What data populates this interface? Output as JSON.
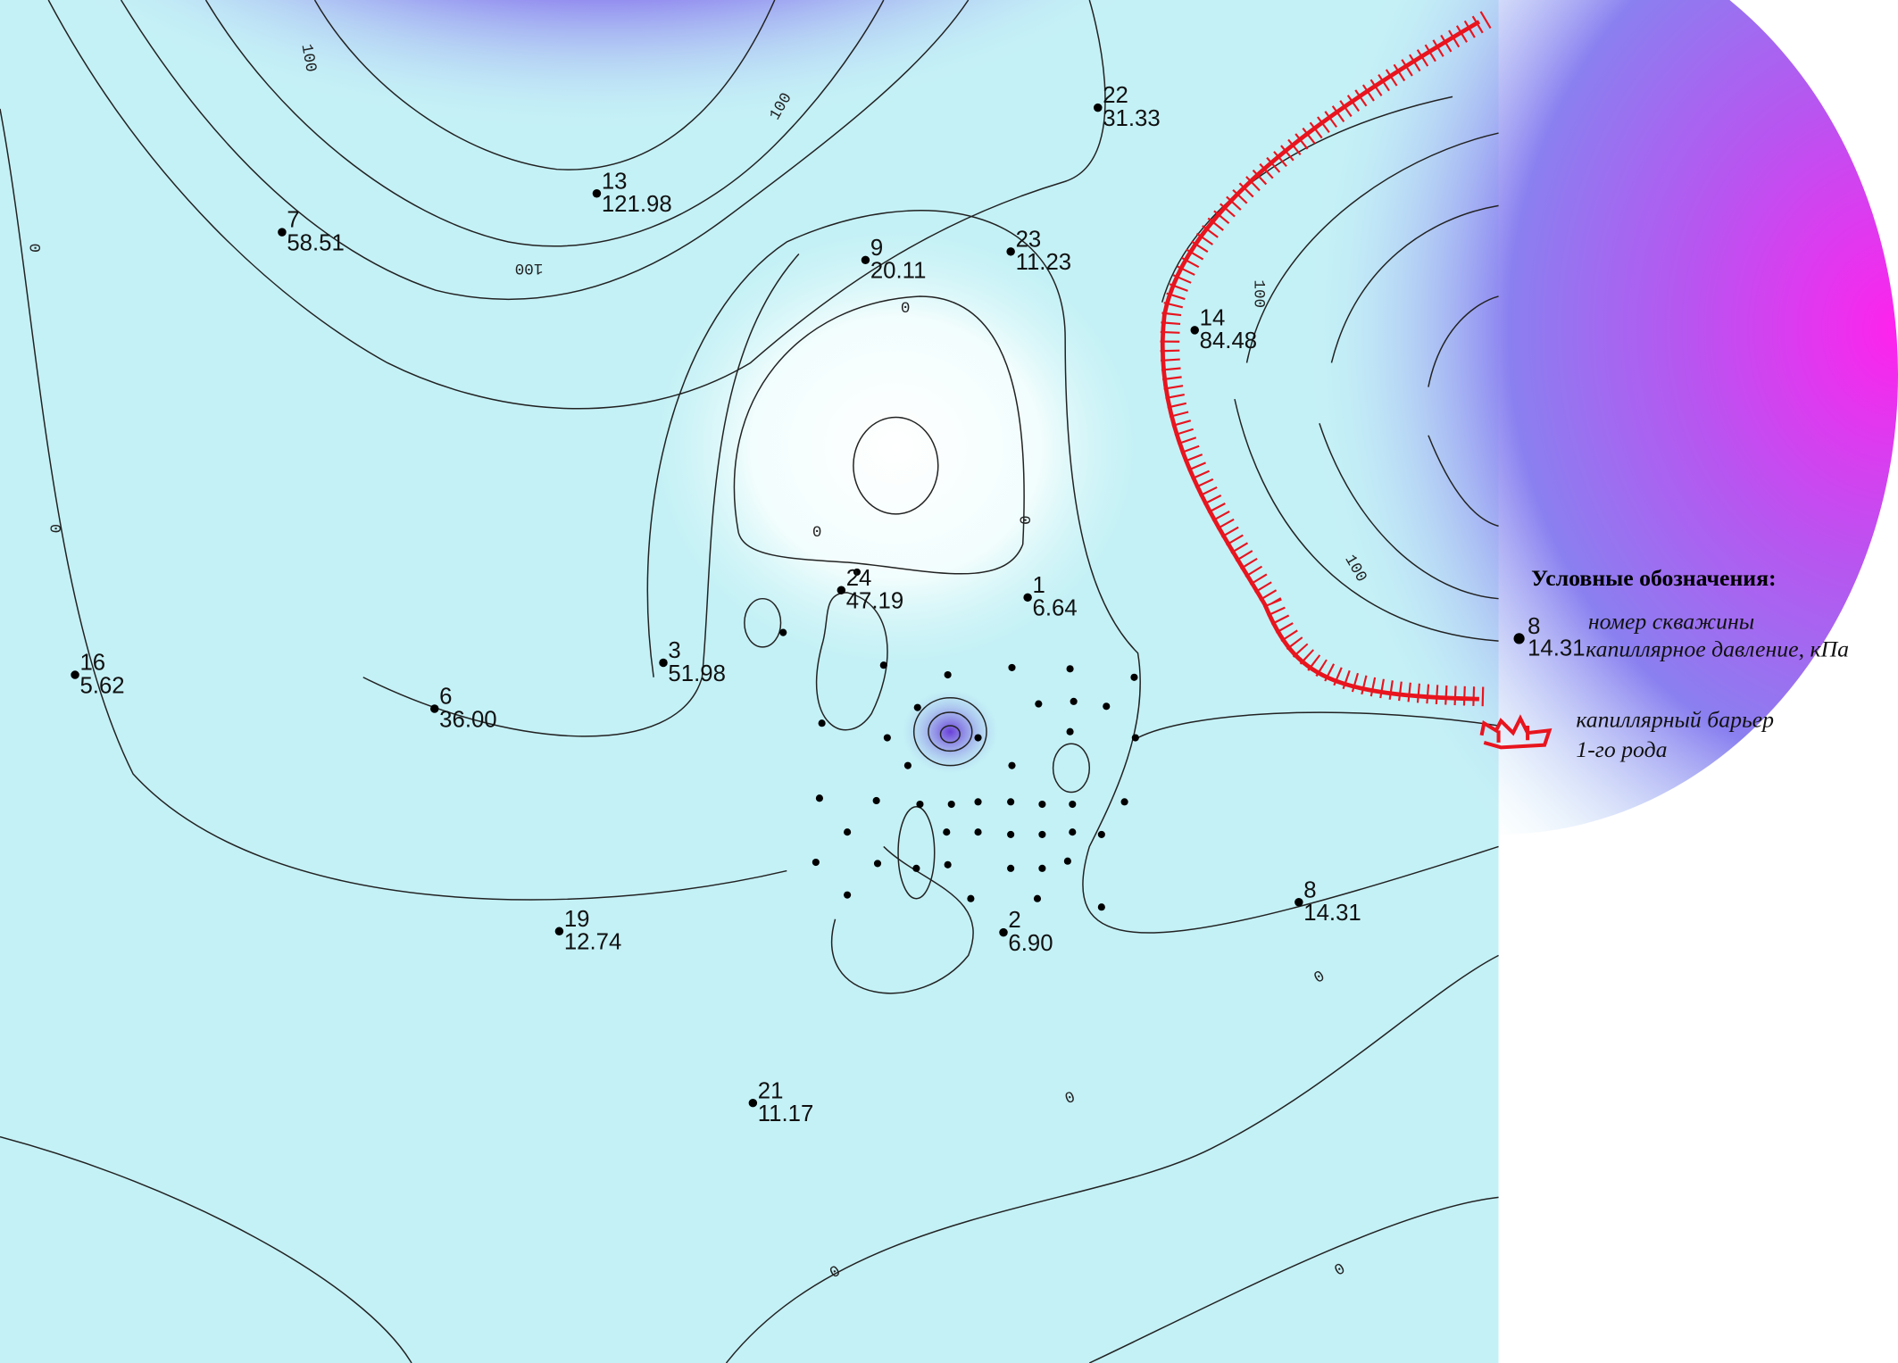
{
  "wells": [
    {
      "number": "22",
      "value": "31.33"
    },
    {
      "number": "13",
      "value": "121.98"
    },
    {
      "number": "7",
      "value": "58.51"
    },
    {
      "number": "9",
      "value": "20.11"
    },
    {
      "number": "23",
      "value": "11.23"
    },
    {
      "number": "14",
      "value": "84.48"
    },
    {
      "number": "24",
      "value": "47.19"
    },
    {
      "number": "1",
      "value": "6.64"
    },
    {
      "number": "3",
      "value": "51.98"
    },
    {
      "number": "16",
      "value": "5.62"
    },
    {
      "number": "6",
      "value": "36.00"
    },
    {
      "number": "8",
      "value": "14.31"
    },
    {
      "number": "2",
      "value": "6.90"
    },
    {
      "number": "19",
      "value": "12.74"
    },
    {
      "number": "21",
      "value": "11.17"
    }
  ],
  "contour_labels": [
    "100",
    "100",
    "100",
    "100",
    "100",
    "0",
    "0",
    "0",
    "0",
    "0",
    "0",
    "0",
    "0",
    "0"
  ],
  "legend": {
    "title": "Условные обозначения:",
    "sample_number": "8",
    "sample_value": "14.31",
    "well_label": "номер скважины",
    "pressure_label": "капиллярное давление, кПа",
    "barrier_label": "капиллярный барьер",
    "barrier_kind": "1-го рода"
  }
}
